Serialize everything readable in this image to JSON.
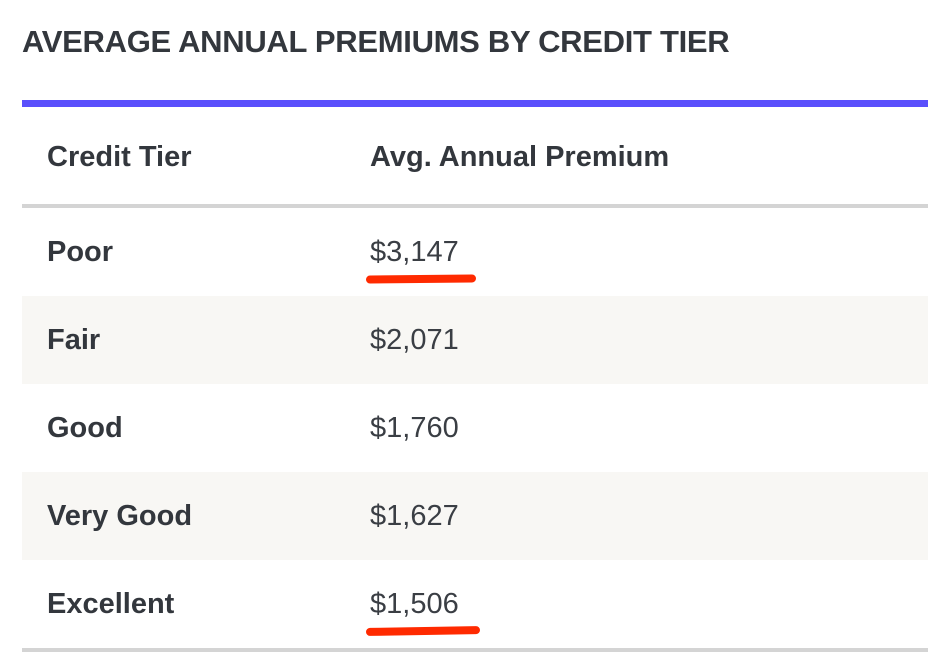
{
  "title": "AVERAGE ANNUAL PREMIUMS BY CREDIT TIER",
  "colors": {
    "accent_rule": "#5a4ffc",
    "text": "#33373d",
    "row_shade": "#f8f7f4",
    "divider": "#d4d4d4",
    "annotation_underline": "#ff2a00"
  },
  "table": {
    "headers": [
      "Credit Tier",
      "Avg. Annual Premium"
    ],
    "rows": [
      {
        "tier": "Poor",
        "premium": "$3,147",
        "underlined": true
      },
      {
        "tier": "Fair",
        "premium": "$2,071",
        "underlined": false
      },
      {
        "tier": "Good",
        "premium": "$1,760",
        "underlined": false
      },
      {
        "tier": "Very Good",
        "premium": "$1,627",
        "underlined": false
      },
      {
        "tier": "Excellent",
        "premium": "$1,506",
        "underlined": true
      }
    ]
  }
}
